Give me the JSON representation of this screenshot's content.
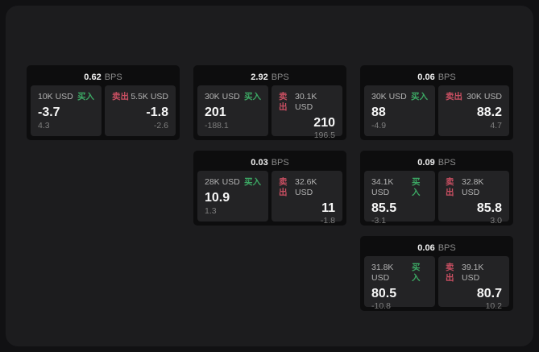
{
  "page": {
    "bps_suffix": "BPS",
    "buy_label": "买入",
    "sell_label": "卖出"
  },
  "colors": {
    "buy_green": "#3ca864",
    "sell_red": "#c94f62",
    "frame_bg": "#1c1c1e",
    "card_bg": "#0d0d0e",
    "panel_bg": "#232325"
  },
  "cards": [
    {
      "bps": "0.62",
      "row": 1,
      "col": 1,
      "buy": {
        "amount": "10K USD",
        "value": "-3.7",
        "sub": "4.3"
      },
      "sell": {
        "amount": "5.5K USD",
        "value": "-1.8",
        "sub": "-2.6"
      }
    },
    {
      "bps": "2.92",
      "row": 1,
      "col": 2,
      "buy": {
        "amount": "30K USD",
        "value": "201",
        "sub": "-188.1"
      },
      "sell": {
        "amount": "30.1K USD",
        "value": "210",
        "sub": "196.5"
      }
    },
    {
      "bps": "0.06",
      "row": 1,
      "col": 3,
      "buy": {
        "amount": "30K USD",
        "value": "88",
        "sub": "-4.9"
      },
      "sell": {
        "amount": "30K USD",
        "value": "88.2",
        "sub": "4.7"
      }
    },
    {
      "bps": "0.03",
      "row": 2,
      "col": 2,
      "buy": {
        "amount": "28K USD",
        "value": "10.9",
        "sub": "1.3"
      },
      "sell": {
        "amount": "32.6K USD",
        "value": "11",
        "sub": "-1.8"
      }
    },
    {
      "bps": "0.09",
      "row": 2,
      "col": 3,
      "buy": {
        "amount": "34.1K USD",
        "value": "85.5",
        "sub": "-3.1"
      },
      "sell": {
        "amount": "32.8K USD",
        "value": "85.8",
        "sub": "3.0"
      }
    },
    {
      "bps": "0.06",
      "row": 3,
      "col": 3,
      "buy": {
        "amount": "31.8K USD",
        "value": "80.5",
        "sub": "-10.8"
      },
      "sell": {
        "amount": "39.1K USD",
        "value": "80.7",
        "sub": "10.2"
      }
    }
  ]
}
